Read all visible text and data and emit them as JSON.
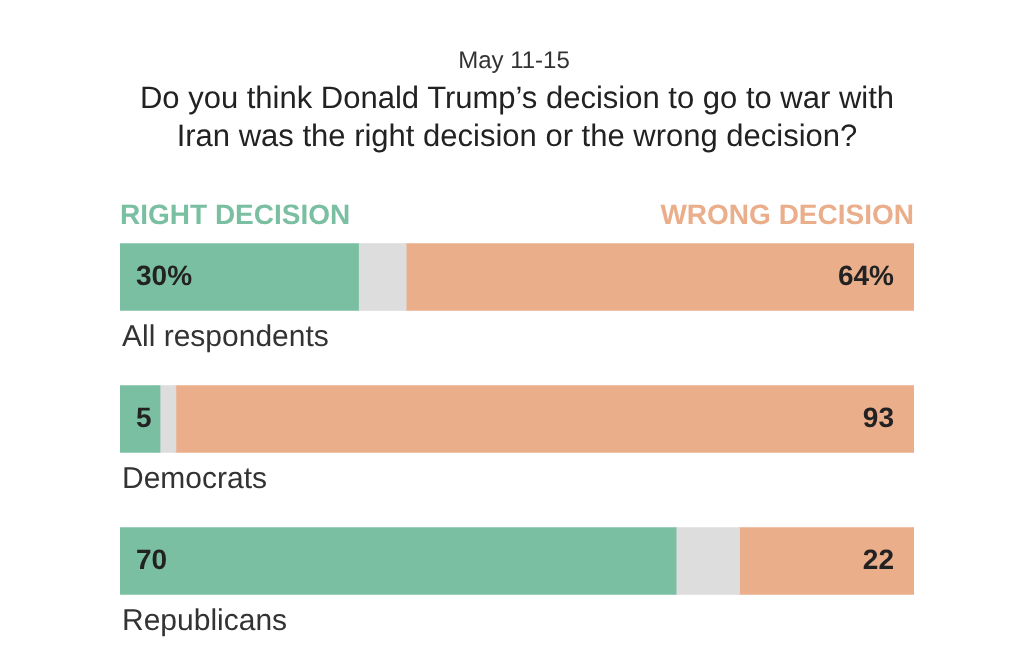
{
  "chart_data": {
    "type": "bar",
    "orientation": "horizontal",
    "stacked": true,
    "title": "Do you think Donald Trump’s decision to go to war with Iran was the right decision or the wrong decision?",
    "subtitle": "May 11-15",
    "categories": [
      "All respondents",
      "Democrats",
      "Republicans"
    ],
    "series": [
      {
        "name": "RIGHT DECISION",
        "color": "#7bbfa3",
        "values": [
          30,
          5,
          70
        ],
        "value_labels": [
          "30%",
          "5",
          "70"
        ]
      },
      {
        "color": "#dddddd",
        "values": [
          6,
          2,
          8
        ]
      },
      {
        "name": "WRONG DECISION",
        "color": "#eaae8b",
        "values": [
          64,
          93,
          22
        ],
        "value_labels": [
          "64%",
          "93",
          "22"
        ]
      }
    ],
    "xlim": [
      0,
      100
    ],
    "tick_labels": false,
    "legend": "top"
  }
}
